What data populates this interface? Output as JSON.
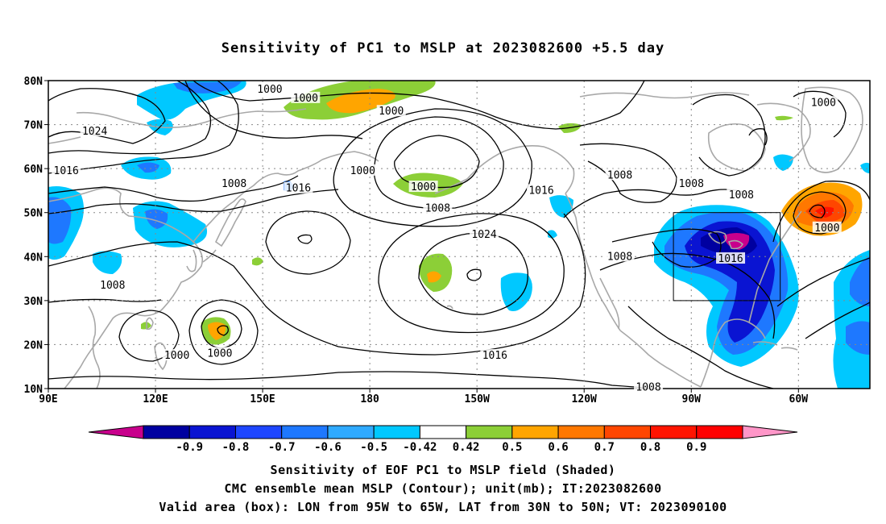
{
  "title": "Sensitivity of PC1 to MSLP at 2023082600 +5.5 day",
  "map": {
    "lat_labels": [
      "80N",
      "70N",
      "60N",
      "50N",
      "40N",
      "30N",
      "20N",
      "10N"
    ],
    "lon_labels": [
      "90E",
      "120E",
      "150E",
      "180",
      "150W",
      "120W",
      "90W",
      "60W"
    ],
    "lon_range": [
      "90E",
      "40W"
    ],
    "lat_range": [
      "10N",
      "80N"
    ],
    "grid": "dotted"
  },
  "contours": {
    "labels": [
      {
        "text": "1000",
        "lon": 152,
        "lat": 78
      },
      {
        "text": "1000",
        "lon": 162,
        "lat": 76
      },
      {
        "text": "1000",
        "lon": 186,
        "lat": 73
      },
      {
        "text": "1024",
        "lon": 103,
        "lat": 68.5
      },
      {
        "text": "1016",
        "lon": 95,
        "lat": 59.5
      },
      {
        "text": "1000",
        "lon": 178,
        "lat": 59.5
      },
      {
        "text": "1008",
        "lon": 142,
        "lat": 56.5
      },
      {
        "text": "1016",
        "lon": 160,
        "lat": 55.5
      },
      {
        "text": "1000",
        "lon": 195,
        "lat": 55.8
      },
      {
        "text": "1008",
        "lon": 199,
        "lat": 51
      },
      {
        "text": "1016",
        "lon": 228,
        "lat": 55
      },
      {
        "text": "1008",
        "lon": 250,
        "lat": 58.5
      },
      {
        "text": "1008",
        "lon": 270,
        "lat": 56.5
      },
      {
        "text": "1008",
        "lon": 284,
        "lat": 54
      },
      {
        "text": "1000",
        "lon": 307,
        "lat": 75
      },
      {
        "text": "1000",
        "lon": 308,
        "lat": 46.5
      },
      {
        "text": "1024",
        "lon": 212,
        "lat": 45
      },
      {
        "text": "1008",
        "lon": 250,
        "lat": 40
      },
      {
        "text": "1016",
        "lon": 281,
        "lat": 39.5
      },
      {
        "text": "1008",
        "lon": 108,
        "lat": 33.5
      },
      {
        "text": "1000",
        "lon": 126,
        "lat": 17.5
      },
      {
        "text": "1000",
        "lon": 138,
        "lat": 18
      },
      {
        "text": "1016",
        "lon": 215,
        "lat": 17.5
      },
      {
        "text": "1008",
        "lon": 258,
        "lat": 10.3
      }
    ]
  },
  "colorbar": {
    "colors": [
      "#c8008c",
      "#0000a0",
      "#0a14d2",
      "#1e46ff",
      "#1e78ff",
      "#2faaff",
      "#00c8ff",
      "#ffffff",
      "#8ccf37",
      "#ffa500",
      "#ff7800",
      "#ff4600",
      "#ff1400",
      "#ff0000",
      "#ff96c8"
    ],
    "labels": [
      "-0.9",
      "-0.8",
      "-0.7",
      "-0.6",
      "-0.5",
      "-0.42",
      "0.42",
      "0.5",
      "0.6",
      "0.7",
      "0.8",
      "0.9"
    ]
  },
  "valid_box": {
    "lon_from": "95W",
    "lon_to": "65W",
    "lat_from": "30N",
    "lat_to": "50N"
  },
  "captions": [
    "Sensitivity of EOF PC1 to MSLP field (Shaded)",
    "CMC ensemble mean MSLP (Contour); unit(mb); IT:2023082600",
    "Valid area (box): LON from 95W to 65W, LAT from 30N to 50N; VT: 2023090100"
  ]
}
